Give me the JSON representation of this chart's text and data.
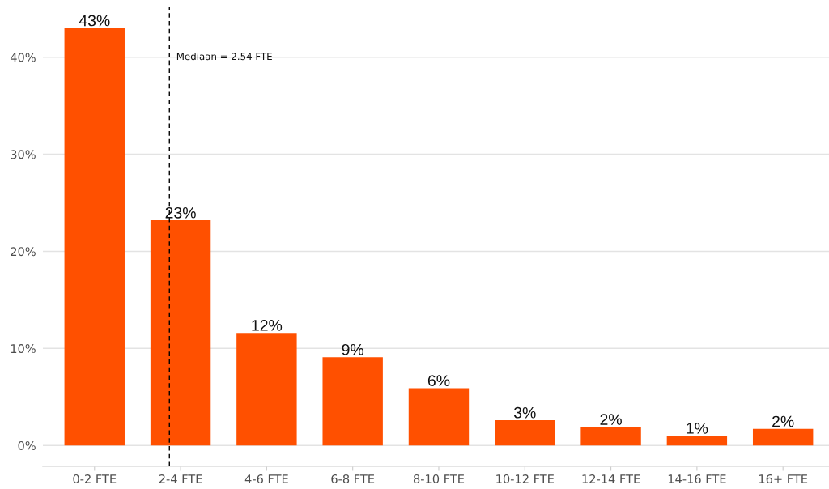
{
  "chart_data": {
    "type": "bar",
    "categories": [
      "0-2 FTE",
      "2-4 FTE",
      "4-6 FTE",
      "6-8 FTE",
      "8-10 FTE",
      "10-12 FTE",
      "12-14 FTE",
      "14-16 FTE",
      "16+ FTE"
    ],
    "values": [
      43.0,
      23.2,
      11.6,
      9.1,
      5.9,
      2.6,
      1.9,
      1.0,
      1.7
    ],
    "value_labels": [
      "43%",
      "23%",
      "12%",
      "9%",
      "6%",
      "3%",
      "2%",
      "1%",
      "2%"
    ],
    "color": "#ff5000",
    "ylim": [
      -2.15,
      45.15
    ],
    "yticks": [
      {
        "value": 0,
        "label": "0%"
      },
      {
        "value": 10,
        "label": "10%"
      },
      {
        "value": 20,
        "label": "20%"
      },
      {
        "value": 30,
        "label": "30%"
      },
      {
        "value": 40,
        "label": "40%"
      }
    ],
    "grid": "y",
    "ref_lines": [
      {
        "axis": "x",
        "value": "2-4 FTE",
        "label": "Mediaan = 2.54 FTE",
        "color": "#000000",
        "line_style": "dashed"
      }
    ]
  }
}
